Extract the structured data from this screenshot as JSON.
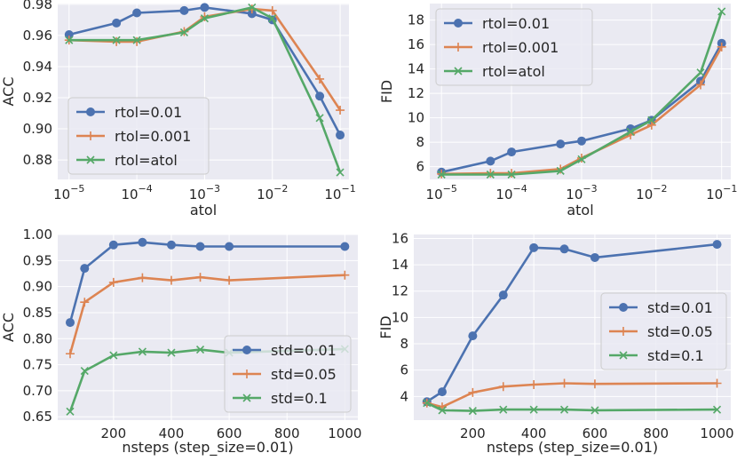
{
  "chart_data": [
    {
      "type": "line",
      "xscale": "log",
      "xlabel": "atol",
      "ylabel": "ACC",
      "xticks": [
        {
          "value": 1e-05,
          "base": "10",
          "exp": "−5"
        },
        {
          "value": 0.0001,
          "base": "10",
          "exp": "−4"
        },
        {
          "value": 0.001,
          "base": "10",
          "exp": "−3"
        },
        {
          "value": 0.01,
          "base": "10",
          "exp": "−2"
        },
        {
          "value": 0.1,
          "base": "10",
          "exp": "−1"
        }
      ],
      "yticks": [
        {
          "value": 0.88,
          "label": "0.88"
        },
        {
          "value": 0.9,
          "label": "0.90"
        },
        {
          "value": 0.92,
          "label": "0.92"
        },
        {
          "value": 0.94,
          "label": "0.94"
        },
        {
          "value": 0.96,
          "label": "0.96"
        },
        {
          "value": 0.98,
          "label": "0.98"
        }
      ],
      "xlim": [
        6.8e-06,
        0.135
      ],
      "ylim": [
        0.8675,
        0.9805
      ],
      "legend_position": "lower-left",
      "x": [
        1e-05,
        5e-05,
        0.0001,
        0.0005,
        0.001,
        0.005,
        0.01,
        0.05,
        0.1
      ],
      "series": [
        {
          "name": "rtol=0.01",
          "marker": "circle",
          "color": "#4c72b0",
          "values": [
            0.9605,
            0.968,
            0.9745,
            0.976,
            0.978,
            0.974,
            0.97,
            0.921,
            0.896
          ]
        },
        {
          "name": "rtol=0.001",
          "marker": "plus",
          "color": "#dd8452",
          "values": [
            0.957,
            0.956,
            0.956,
            0.9625,
            0.972,
            0.977,
            0.976,
            0.932,
            0.912
          ]
        },
        {
          "name": "rtol=atol",
          "marker": "x",
          "color": "#55a868",
          "values": [
            0.957,
            0.957,
            0.957,
            0.962,
            0.971,
            0.978,
            0.971,
            0.907,
            0.872
          ]
        }
      ]
    },
    {
      "type": "line",
      "xscale": "log",
      "xlabel": "atol",
      "ylabel": "FID",
      "xticks": [
        {
          "value": 1e-05,
          "base": "10",
          "exp": "−5"
        },
        {
          "value": 0.0001,
          "base": "10",
          "exp": "−4"
        },
        {
          "value": 0.001,
          "base": "10",
          "exp": "−3"
        },
        {
          "value": 0.01,
          "base": "10",
          "exp": "−2"
        },
        {
          "value": 0.1,
          "base": "10",
          "exp": "−1"
        }
      ],
      "yticks": [
        {
          "value": 6,
          "label": "6"
        },
        {
          "value": 8,
          "label": "8"
        },
        {
          "value": 10,
          "label": "10"
        },
        {
          "value": 12,
          "label": "12"
        },
        {
          "value": 14,
          "label": "14"
        },
        {
          "value": 16,
          "label": "16"
        },
        {
          "value": 18,
          "label": "18"
        }
      ],
      "xlim": [
        6.8e-06,
        0.135
      ],
      "ylim": [
        4.95,
        19.35
      ],
      "legend_position": "upper-left",
      "x": [
        1e-05,
        5e-05,
        0.0001,
        0.0005,
        0.001,
        0.005,
        0.01,
        0.05,
        0.1
      ],
      "series": [
        {
          "name": "rtol=0.01",
          "marker": "circle",
          "color": "#4c72b0",
          "values": [
            5.55,
            6.45,
            7.2,
            7.85,
            8.1,
            9.1,
            9.8,
            13.0,
            16.1
          ]
        },
        {
          "name": "rtol=0.001",
          "marker": "plus",
          "color": "#dd8452",
          "values": [
            5.4,
            5.45,
            5.45,
            5.8,
            6.7,
            8.6,
            9.4,
            12.7,
            15.8
          ]
        },
        {
          "name": "rtol=atol",
          "marker": "x",
          "color": "#55a868",
          "values": [
            5.35,
            5.35,
            5.35,
            5.65,
            6.6,
            8.85,
            9.8,
            13.7,
            18.7
          ]
        }
      ]
    },
    {
      "type": "line",
      "xscale": "linear",
      "xlabel": "nsteps (step_size=0.01)",
      "ylabel": "ACC",
      "xticks": [
        {
          "value": 200,
          "label": "200"
        },
        {
          "value": 400,
          "label": "400"
        },
        {
          "value": 600,
          "label": "600"
        },
        {
          "value": 800,
          "label": "800"
        },
        {
          "value": 1000,
          "label": "1000"
        }
      ],
      "yticks": [
        {
          "value": 0.65,
          "label": "0.65"
        },
        {
          "value": 0.7,
          "label": "0.70"
        },
        {
          "value": 0.75,
          "label": "0.75"
        },
        {
          "value": 0.8,
          "label": "0.80"
        },
        {
          "value": 0.85,
          "label": "0.85"
        },
        {
          "value": 0.9,
          "label": "0.90"
        },
        {
          "value": 0.95,
          "label": "0.95"
        },
        {
          "value": 1.0,
          "label": "1.00"
        }
      ],
      "xlim": [
        7,
        1045
      ],
      "ylim": [
        0.6435,
        1.0
      ],
      "legend_position": "lower-right",
      "x": [
        50,
        100,
        200,
        300,
        400,
        500,
        600,
        1000
      ],
      "series": [
        {
          "name": "std=0.01",
          "marker": "circle",
          "color": "#4c72b0",
          "values": [
            0.831,
            0.935,
            0.98,
            0.985,
            0.98,
            0.977,
            0.977,
            0.977
          ]
        },
        {
          "name": "std=0.05",
          "marker": "plus",
          "color": "#dd8452",
          "values": [
            0.771,
            0.87,
            0.908,
            0.917,
            0.912,
            0.918,
            0.912,
            0.922
          ]
        },
        {
          "name": "std=0.1",
          "marker": "x",
          "color": "#55a868",
          "values": [
            0.66,
            0.738,
            0.768,
            0.775,
            0.773,
            0.779,
            0.773,
            0.78
          ]
        }
      ]
    },
    {
      "type": "line",
      "xscale": "linear",
      "xlabel": "nsteps (step_size=0.01)",
      "ylabel": "FID",
      "xticks": [
        {
          "value": 200,
          "label": "200"
        },
        {
          "value": 400,
          "label": "400"
        },
        {
          "value": 600,
          "label": "600"
        },
        {
          "value": 800,
          "label": "800"
        },
        {
          "value": 1000,
          "label": "1000"
        }
      ],
      "yticks": [
        {
          "value": 4,
          "label": "4"
        },
        {
          "value": 6,
          "label": "6"
        },
        {
          "value": 8,
          "label": "8"
        },
        {
          "value": 10,
          "label": "10"
        },
        {
          "value": 12,
          "label": "12"
        },
        {
          "value": 14,
          "label": "14"
        },
        {
          "value": 16,
          "label": "16"
        }
      ],
      "xlim": [
        7,
        1045
      ],
      "ylim": [
        2.2,
        16.3
      ],
      "legend_position": "center-right",
      "x": [
        50,
        100,
        200,
        300,
        400,
        500,
        600,
        1000
      ],
      "series": [
        {
          "name": "std=0.01",
          "marker": "circle",
          "color": "#4c72b0",
          "values": [
            3.6,
            4.35,
            8.6,
            11.7,
            15.3,
            15.2,
            14.55,
            15.55
          ]
        },
        {
          "name": "std=0.05",
          "marker": "plus",
          "color": "#dd8452",
          "values": [
            3.5,
            3.2,
            4.3,
            4.75,
            4.9,
            5.0,
            4.95,
            5.0
          ]
        },
        {
          "name": "std=0.1",
          "marker": "x",
          "color": "#55a868",
          "values": [
            3.5,
            2.95,
            2.9,
            3.0,
            3.0,
            3.0,
            2.95,
            3.0
          ]
        }
      ]
    }
  ]
}
